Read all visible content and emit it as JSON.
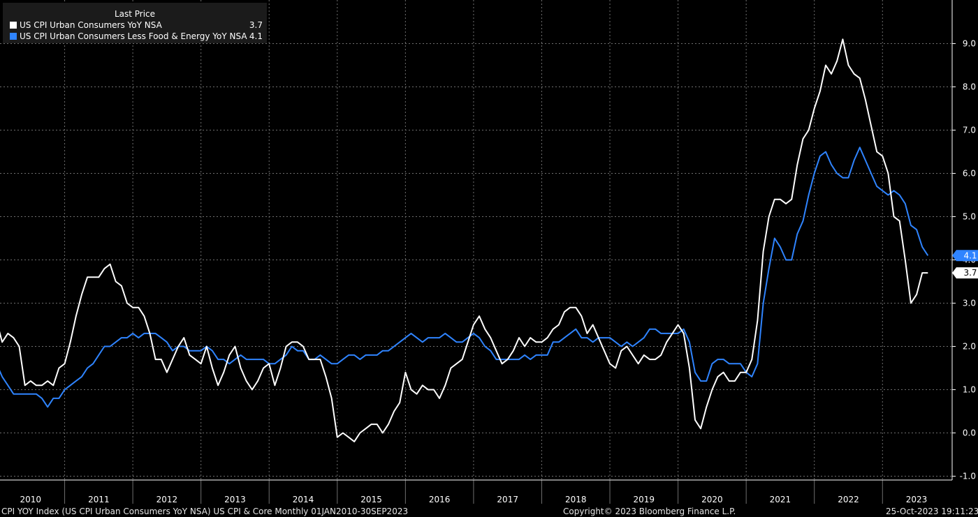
{
  "colors": {
    "background": "#000000",
    "grid": "#6f6f6f",
    "cpi": "#ffffff",
    "core": "#2f84ff",
    "legend_bg": "#1b1b1b"
  },
  "legend": {
    "title": "Last Price",
    "items": [
      {
        "name": "US CPI Urban Consumers YoY NSA",
        "value": "3.7",
        "color": "#ffffff"
      },
      {
        "name": "US CPI Urban Consumers Less Food & Energy YoY NSA",
        "value": "4.1",
        "color": "#2f84ff"
      }
    ]
  },
  "footer": {
    "left": "CPI YOY Index (US CPI Urban Consumers YoY NSA) US CPI & Core  Monthly 01JAN2010-30SEP2023",
    "center": "Copyright© 2023 Bloomberg Finance L.P.",
    "right": "25-Oct-2023 19:11:23"
  },
  "chart_data": {
    "type": "line",
    "x_start": "2010-01",
    "x_end": "2023-09",
    "x_tick_labels": [
      "2010",
      "2011",
      "2012",
      "2013",
      "2014",
      "2015",
      "2016",
      "2017",
      "2018",
      "2019",
      "2020",
      "2021",
      "2022",
      "2023"
    ],
    "y_tick_labels": [
      "9.0",
      "8.0",
      "7.0",
      "6.0",
      "5.0",
      "4.0",
      "3.0",
      "2.0",
      "1.0",
      "0.0",
      "-1.0"
    ],
    "ylim": [
      -1.0,
      9.6
    ],
    "y_axis_side": "right",
    "grid": true,
    "legend_position": "top-left",
    "series": [
      {
        "name": "US CPI Urban Consumers YoY NSA",
        "color": "#ffffff",
        "last_label": "3.7",
        "values": [
          2.6,
          2.1,
          2.3,
          2.2,
          2.0,
          1.1,
          1.2,
          1.1,
          1.1,
          1.2,
          1.1,
          1.5,
          1.6,
          2.1,
          2.7,
          3.2,
          3.6,
          3.6,
          3.6,
          3.8,
          3.9,
          3.5,
          3.4,
          3.0,
          2.9,
          2.9,
          2.7,
          2.3,
          1.7,
          1.7,
          1.4,
          1.7,
          2.0,
          2.2,
          1.8,
          1.7,
          1.6,
          2.0,
          1.5,
          1.1,
          1.4,
          1.8,
          2.0,
          1.5,
          1.2,
          1.0,
          1.2,
          1.5,
          1.6,
          1.1,
          1.5,
          2.0,
          2.1,
          2.1,
          2.0,
          1.7,
          1.7,
          1.7,
          1.3,
          0.8,
          -0.1,
          0.0,
          -0.1,
          -0.2,
          0.0,
          0.1,
          0.2,
          0.2,
          0.0,
          0.2,
          0.5,
          0.7,
          1.4,
          1.0,
          0.9,
          1.1,
          1.0,
          1.0,
          0.8,
          1.1,
          1.5,
          1.6,
          1.7,
          2.1,
          2.5,
          2.7,
          2.4,
          2.2,
          1.9,
          1.6,
          1.7,
          1.9,
          2.2,
          2.0,
          2.2,
          2.1,
          2.1,
          2.2,
          2.4,
          2.5,
          2.8,
          2.9,
          2.9,
          2.7,
          2.3,
          2.5,
          2.2,
          1.9,
          1.6,
          1.5,
          1.9,
          2.0,
          1.8,
          1.6,
          1.8,
          1.7,
          1.7,
          1.8,
          2.1,
          2.3,
          2.5,
          2.3,
          1.5,
          0.3,
          0.1,
          0.6,
          1.0,
          1.3,
          1.4,
          1.2,
          1.2,
          1.4,
          1.4,
          1.7,
          2.6,
          4.2,
          5.0,
          5.4,
          5.4,
          5.3,
          5.4,
          6.2,
          6.8,
          7.0,
          7.5,
          7.9,
          8.5,
          8.3,
          8.6,
          9.1,
          8.5,
          8.3,
          8.2,
          7.7,
          7.1,
          6.5,
          6.4,
          6.0,
          5.0,
          4.9,
          4.0,
          3.0,
          3.2,
          3.7,
          3.7
        ]
      },
      {
        "name": "US CPI Urban Consumers Less Food & Energy YoY NSA",
        "color": "#2f84ff",
        "last_label": "4.1",
        "values": [
          1.6,
          1.3,
          1.1,
          0.9,
          0.9,
          0.9,
          0.9,
          0.9,
          0.8,
          0.6,
          0.8,
          0.8,
          1.0,
          1.1,
          1.2,
          1.3,
          1.5,
          1.6,
          1.8,
          2.0,
          2.0,
          2.1,
          2.2,
          2.2,
          2.3,
          2.2,
          2.3,
          2.3,
          2.3,
          2.2,
          2.1,
          1.9,
          2.0,
          2.0,
          1.9,
          1.9,
          1.9,
          2.0,
          1.9,
          1.7,
          1.7,
          1.6,
          1.7,
          1.8,
          1.7,
          1.7,
          1.7,
          1.7,
          1.6,
          1.6,
          1.7,
          1.8,
          2.0,
          1.9,
          1.9,
          1.7,
          1.7,
          1.8,
          1.7,
          1.6,
          1.6,
          1.7,
          1.8,
          1.8,
          1.7,
          1.8,
          1.8,
          1.8,
          1.9,
          1.9,
          2.0,
          2.1,
          2.2,
          2.3,
          2.2,
          2.1,
          2.2,
          2.2,
          2.2,
          2.3,
          2.2,
          2.1,
          2.1,
          2.2,
          2.3,
          2.2,
          2.0,
          1.9,
          1.7,
          1.7,
          1.7,
          1.7,
          1.7,
          1.8,
          1.7,
          1.8,
          1.8,
          1.8,
          2.1,
          2.1,
          2.2,
          2.3,
          2.4,
          2.2,
          2.2,
          2.1,
          2.2,
          2.2,
          2.2,
          2.1,
          2.0,
          2.1,
          2.0,
          2.1,
          2.2,
          2.4,
          2.4,
          2.3,
          2.3,
          2.3,
          2.3,
          2.4,
          2.1,
          1.4,
          1.2,
          1.2,
          1.6,
          1.7,
          1.7,
          1.6,
          1.6,
          1.6,
          1.4,
          1.3,
          1.6,
          3.0,
          3.8,
          4.5,
          4.3,
          4.0,
          4.0,
          4.6,
          4.9,
          5.5,
          6.0,
          6.4,
          6.5,
          6.2,
          6.0,
          5.9,
          5.9,
          6.3,
          6.6,
          6.3,
          6.0,
          5.7,
          5.6,
          5.5,
          5.6,
          5.5,
          5.3,
          4.8,
          4.7,
          4.3,
          4.1
        ]
      }
    ]
  }
}
